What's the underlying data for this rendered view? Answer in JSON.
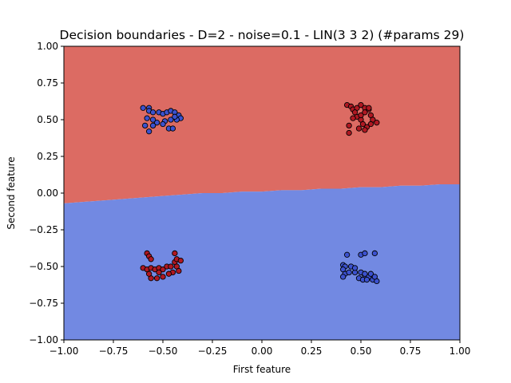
{
  "chart_data": {
    "type": "scatter",
    "title": "Decision boundaries - D=2 - noise=0.1 - LIN(3 3 2) (#params 29)",
    "xlabel": "First feature",
    "ylabel": "Second feature",
    "xlim": [
      -1.0,
      1.0
    ],
    "ylim": [
      -1.0,
      1.0
    ],
    "xticks": [
      "−1.00",
      "−0.75",
      "−0.50",
      "−0.25",
      "0.00",
      "0.25",
      "0.50",
      "0.75",
      "1.00"
    ],
    "yticks": [
      "−1.00",
      "−0.75",
      "−0.50",
      "−0.25",
      "0.00",
      "0.25",
      "0.50",
      "0.75",
      "1.00"
    ],
    "grid": false,
    "region_colors": {
      "upper": "#dc6b63",
      "lower": "#7289e2"
    },
    "decision_boundary": [
      [
        -1.0,
        -0.07
      ],
      [
        -0.9,
        -0.06
      ],
      [
        -0.8,
        -0.05
      ],
      [
        -0.7,
        -0.04
      ],
      [
        -0.6,
        -0.03
      ],
      [
        -0.5,
        -0.02
      ],
      [
        -0.4,
        -0.01
      ],
      [
        -0.3,
        0.0
      ],
      [
        -0.2,
        0.0
      ],
      [
        -0.1,
        0.01
      ],
      [
        0.0,
        0.01
      ],
      [
        0.1,
        0.02
      ],
      [
        0.2,
        0.02
      ],
      [
        0.3,
        0.03
      ],
      [
        0.4,
        0.03
      ],
      [
        0.5,
        0.04
      ],
      [
        0.6,
        0.04
      ],
      [
        0.7,
        0.05
      ],
      [
        0.8,
        0.05
      ],
      [
        0.9,
        0.06
      ],
      [
        1.0,
        0.06
      ]
    ],
    "series": [
      {
        "color": "#3c52cf",
        "points": [
          [
            -0.6,
            0.58
          ],
          [
            -0.57,
            0.58
          ],
          [
            -0.57,
            0.56
          ],
          [
            -0.55,
            0.55
          ],
          [
            -0.52,
            0.55
          ],
          [
            -0.5,
            0.54
          ],
          [
            -0.48,
            0.55
          ],
          [
            -0.46,
            0.56
          ],
          [
            -0.44,
            0.55
          ],
          [
            -0.42,
            0.53
          ],
          [
            -0.41,
            0.51
          ],
          [
            -0.43,
            0.5
          ],
          [
            -0.46,
            0.5
          ],
          [
            -0.49,
            0.49
          ],
          [
            -0.53,
            0.48
          ],
          [
            -0.55,
            0.5
          ],
          [
            -0.58,
            0.51
          ],
          [
            -0.59,
            0.46
          ],
          [
            -0.55,
            0.46
          ],
          [
            -0.5,
            0.47
          ],
          [
            -0.47,
            0.44
          ],
          [
            -0.45,
            0.44
          ],
          [
            -0.57,
            0.42
          ],
          [
            -0.44,
            0.52
          ],
          [
            0.41,
            -0.49
          ],
          [
            0.42,
            -0.5
          ],
          [
            0.45,
            -0.5
          ],
          [
            0.41,
            -0.52
          ],
          [
            0.42,
            -0.55
          ],
          [
            0.41,
            -0.57
          ],
          [
            0.44,
            -0.54
          ],
          [
            0.47,
            -0.54
          ],
          [
            0.5,
            -0.54
          ],
          [
            0.52,
            -0.56
          ],
          [
            0.54,
            -0.57
          ],
          [
            0.56,
            -0.59
          ],
          [
            0.58,
            -0.6
          ],
          [
            0.55,
            -0.55
          ],
          [
            0.57,
            -0.57
          ],
          [
            0.49,
            -0.58
          ],
          [
            0.51,
            -0.59
          ],
          [
            0.53,
            -0.59
          ],
          [
            0.47,
            -0.51
          ],
          [
            0.43,
            -0.42
          ],
          [
            0.5,
            -0.42
          ],
          [
            0.52,
            -0.41
          ],
          [
            0.57,
            -0.41
          ],
          [
            0.52,
            -0.55
          ]
        ]
      },
      {
        "color": "#b01822",
        "points": [
          [
            0.43,
            0.6
          ],
          [
            0.45,
            0.59
          ],
          [
            0.46,
            0.57
          ],
          [
            0.48,
            0.58
          ],
          [
            0.5,
            0.6
          ],
          [
            0.52,
            0.58
          ],
          [
            0.54,
            0.57
          ],
          [
            0.55,
            0.53
          ],
          [
            0.56,
            0.5
          ],
          [
            0.58,
            0.48
          ],
          [
            0.55,
            0.47
          ],
          [
            0.53,
            0.45
          ],
          [
            0.52,
            0.43
          ],
          [
            0.5,
            0.5
          ],
          [
            0.48,
            0.52
          ],
          [
            0.46,
            0.51
          ],
          [
            0.44,
            0.46
          ],
          [
            0.44,
            0.41
          ],
          [
            0.47,
            0.55
          ],
          [
            0.5,
            0.53
          ],
          [
            0.52,
            0.55
          ],
          [
            0.54,
            0.58
          ],
          [
            0.51,
            0.47
          ],
          [
            0.49,
            0.44
          ],
          [
            -0.58,
            -0.41
          ],
          [
            -0.57,
            -0.43
          ],
          [
            -0.56,
            -0.45
          ],
          [
            -0.6,
            -0.51
          ],
          [
            -0.58,
            -0.52
          ],
          [
            -0.56,
            -0.51
          ],
          [
            -0.54,
            -0.52
          ],
          [
            -0.52,
            -0.51
          ],
          [
            -0.5,
            -0.52
          ],
          [
            -0.48,
            -0.5
          ],
          [
            -0.46,
            -0.5
          ],
          [
            -0.44,
            -0.47
          ],
          [
            -0.43,
            -0.45
          ],
          [
            -0.41,
            -0.46
          ],
          [
            -0.43,
            -0.5
          ],
          [
            -0.42,
            -0.53
          ],
          [
            -0.45,
            -0.54
          ],
          [
            -0.47,
            -0.55
          ],
          [
            -0.5,
            -0.57
          ],
          [
            -0.53,
            -0.58
          ],
          [
            -0.56,
            -0.58
          ],
          [
            -0.57,
            -0.55
          ],
          [
            -0.52,
            -0.54
          ],
          [
            -0.44,
            -0.41
          ]
        ]
      }
    ]
  }
}
